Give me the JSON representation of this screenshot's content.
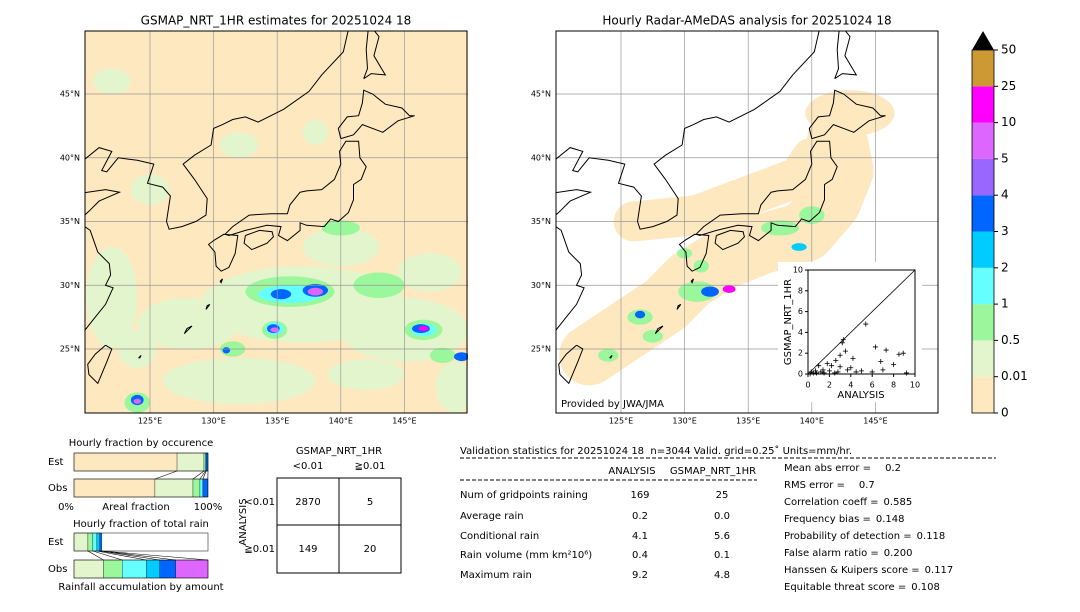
{
  "maps": [
    {
      "title": "GSMAP_NRT_1HR estimates for 20251024 18",
      "lat_labels": [
        "45°N",
        "40°N",
        "35°N",
        "30°N",
        "25°N"
      ],
      "lon_labels": [
        "125°E",
        "130°E",
        "135°E",
        "140°E",
        "145°E"
      ]
    },
    {
      "title": "Hourly Radar-AMeDAS analysis for 20251024 18",
      "lat_labels": [
        "45°N",
        "40°N",
        "35°N",
        "30°N",
        "25°N"
      ],
      "lon_labels": [
        "125°E",
        "130°E",
        "135°E",
        "140°E",
        "145°E"
      ],
      "credit": "Provided by JWA/JMA"
    }
  ],
  "colorbar": {
    "labels": [
      "0",
      "0.01",
      "0.5",
      "1",
      "2",
      "3",
      "4",
      "5",
      "10",
      "25",
      "50"
    ],
    "colors": [
      "#fee8c0",
      "#e3f5cc",
      "#9bf79b",
      "#66ffff",
      "#00ccff",
      "#0066ff",
      "#9966ff",
      "#dd66ff",
      "#ff00ff",
      "#cc9933"
    ],
    "extend_color": "#000000"
  },
  "scatter": {
    "type": "scatter",
    "x": [
      0.3,
      0.5,
      0.7,
      1.0,
      1.2,
      1.5,
      1.8,
      2.0,
      2.2,
      2.5,
      2.6,
      3.0,
      3.0,
      3.2,
      3.5,
      3.7,
      4.0,
      4.2,
      4.5,
      5.0,
      5.4,
      6.0,
      6.3,
      6.8,
      7.0,
      7.3,
      8.0,
      8.5,
      8.9,
      9.2,
      0.2,
      0.8,
      1.4,
      2.8,
      3.3
    ],
    "y": [
      0.2,
      0.1,
      0.3,
      0.8,
      0.2,
      0.1,
      1.0,
      0.3,
      0.8,
      0.1,
      1.3,
      0.7,
      1.8,
      3.0,
      2.2,
      0.4,
      0.6,
      1.5,
      0.2,
      0.3,
      4.8,
      0.2,
      2.6,
      1.2,
      0.4,
      2.3,
      0.9,
      1.9,
      2.0,
      0.1,
      0.0,
      0.1,
      0.4,
      0.2,
      3.3
    ],
    "xlim": [
      0,
      10
    ],
    "ylim": [
      0,
      10
    ],
    "xticks": [
      0,
      2,
      4,
      6,
      8,
      10
    ],
    "yticks": [
      0,
      2,
      4,
      6,
      8,
      10
    ],
    "xlabel": "ANALYSIS",
    "ylabel": "GSMAP_NRT_1HR",
    "color": "#000000"
  },
  "fraction": {
    "occurrence": {
      "title": "Hourly fraction by occurence",
      "colors": [
        "#fee8c0",
        "#e3f5cc",
        "#9bf79b",
        "#66ffff",
        "#0066ff"
      ],
      "rows": [
        {
          "name": "Est",
          "values": [
            76.9,
            20.1,
            1.1,
            0.5,
            1.4
          ]
        },
        {
          "name": "Obs",
          "values": [
            60.4,
            28.4,
            5.2,
            2.2,
            3.7
          ]
        }
      ],
      "axis_labels": [
        "0%",
        "Areal fraction",
        "100%"
      ]
    },
    "total_rain": {
      "title": "Hourly fraction of total rain",
      "colors": [
        "#e3f5cc",
        "#9bf79b",
        "#66ffff",
        "#00ccff",
        "#0066ff",
        "#dd66ff"
      ],
      "rows": [
        {
          "name": "Est",
          "values": [
            10.4,
            3.7,
            3.0,
            2.2,
            1.5,
            0.0
          ]
        },
        {
          "name": "Obs",
          "values": [
            22,
            14,
            18,
            10,
            12,
            24
          ]
        }
      ],
      "caption": "Rainfall accumulation by amount"
    }
  },
  "contingency": {
    "title": "GSMAP_NRT_1HR",
    "col_labels": [
      "<0.01",
      "≧0.01"
    ],
    "row_title": "ANALYSIS",
    "row_labels": [
      "<0.01",
      "≧0.01"
    ],
    "cells": [
      [
        2870,
        5
      ],
      [
        149,
        20
      ]
    ]
  },
  "validation": {
    "header": "Validation statistics for 20251024 18  n=3044 Valid. grid=0.25˚ Units=mm/hr.",
    "columns": [
      "ANALYSIS",
      "GSMAP_NRT_1HR"
    ],
    "rows": [
      {
        "label": "Num of gridpoints raining",
        "values": [
          169,
          25
        ]
      },
      {
        "label": "Average rain",
        "values": [
          0.2,
          "0.0"
        ]
      },
      {
        "label": "Conditional rain",
        "values": [
          4.1,
          5.6
        ]
      },
      {
        "label": "Rain volume (mm km²10⁶)",
        "values": [
          0.4,
          0.1
        ]
      },
      {
        "label": "Maximum rain",
        "values": [
          9.2,
          4.8
        ]
      }
    ],
    "scores": [
      {
        "label": "Mean abs error =",
        "value": 0.2
      },
      {
        "label": "RMS error =",
        "value": 0.7
      },
      {
        "label": "Correlation coeff =",
        "value": 0.585
      },
      {
        "label": "Frequency bias =",
        "value": 0.148
      },
      {
        "label": "Probability of detection =",
        "value": 0.118
      },
      {
        "label": "False alarm ratio =",
        "value": "0.200"
      },
      {
        "label": "Hanssen & Kuipers score =",
        "value": 0.117
      },
      {
        "label": "Equitable threat score =",
        "value": 0.108
      }
    ]
  }
}
